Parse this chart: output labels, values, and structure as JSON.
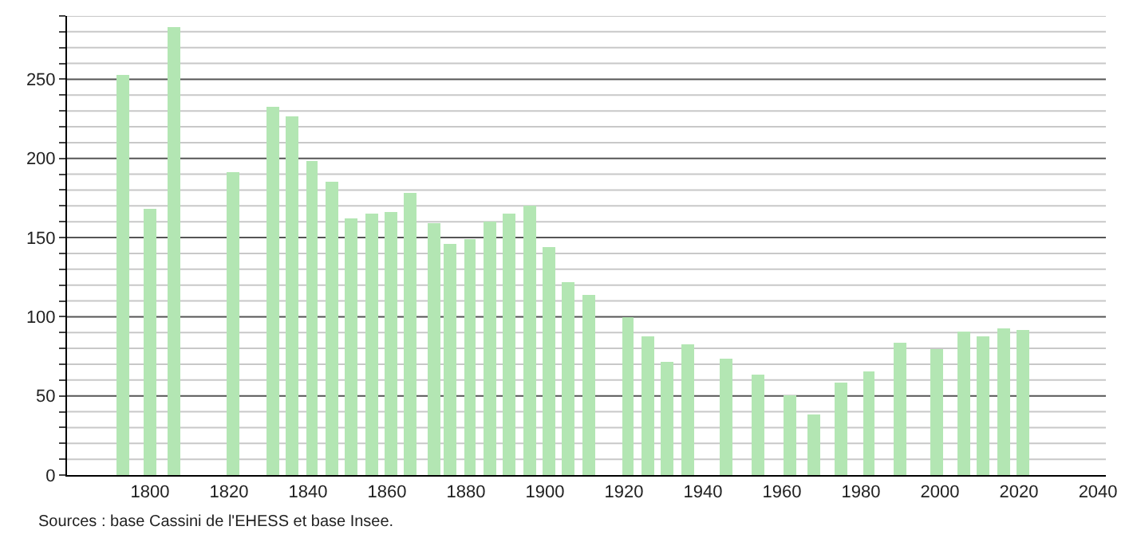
{
  "chart_data": {
    "type": "bar",
    "color": "#b3e6b3",
    "x": [
      1793,
      1800,
      1806,
      1821,
      1831,
      1836,
      1841,
      1846,
      1851,
      1856,
      1861,
      1866,
      1872,
      1876,
      1881,
      1886,
      1891,
      1896,
      1901,
      1906,
      1911,
      1921,
      1926,
      1931,
      1936,
      1946,
      1954,
      1962,
      1968,
      1975,
      1982,
      1990,
      1999,
      2006,
      2011,
      2016,
      2021
    ],
    "values": [
      253,
      168,
      283,
      191,
      233,
      227,
      198,
      185,
      162,
      165,
      166,
      178,
      159,
      146,
      149,
      160,
      165,
      170,
      144,
      122,
      114,
      100,
      88,
      72,
      83,
      74,
      63,
      50,
      38,
      58,
      65,
      84,
      80,
      91,
      88,
      93,
      92
    ],
    "xlim": [
      1779,
      2042
    ],
    "xticks": [
      1800,
      1820,
      1840,
      1860,
      1880,
      1900,
      1920,
      1940,
      1960,
      1980,
      2000,
      2020,
      2040
    ],
    "ylim": [
      0,
      290
    ],
    "yticks": [
      0,
      {
        "value": 10,
        "label": null
      },
      {
        "value": 20,
        "label": null
      },
      {
        "value": 30,
        "label": null
      },
      {
        "value": 40,
        "label": null
      },
      50,
      {
        "value": 60,
        "label": null
      },
      {
        "value": 70,
        "label": null
      },
      {
        "value": 80,
        "label": null
      },
      {
        "value": 90,
        "label": null
      },
      100,
      {
        "value": 110,
        "label": null
      },
      {
        "value": 120,
        "label": null
      },
      {
        "value": 130,
        "label": null
      },
      {
        "value": 140,
        "label": null
      },
      150,
      {
        "value": 160,
        "label": null
      },
      {
        "value": 170,
        "label": null
      },
      {
        "value": 180,
        "label": null
      },
      {
        "value": 190,
        "label": null
      },
      200,
      {
        "value": 210,
        "label": null
      },
      {
        "value": 220,
        "label": null
      },
      {
        "value": 230,
        "label": null
      },
      {
        "value": 240,
        "label": null
      },
      250,
      {
        "value": 260,
        "label": null
      },
      {
        "value": 270,
        "label": null
      },
      {
        "value": 280,
        "label": null
      },
      {
        "value": 290,
        "label": null
      }
    ],
    "grid": "y",
    "annotations": [
      "Sources : base Cassini de l'EHESS et base Insee."
    ]
  }
}
